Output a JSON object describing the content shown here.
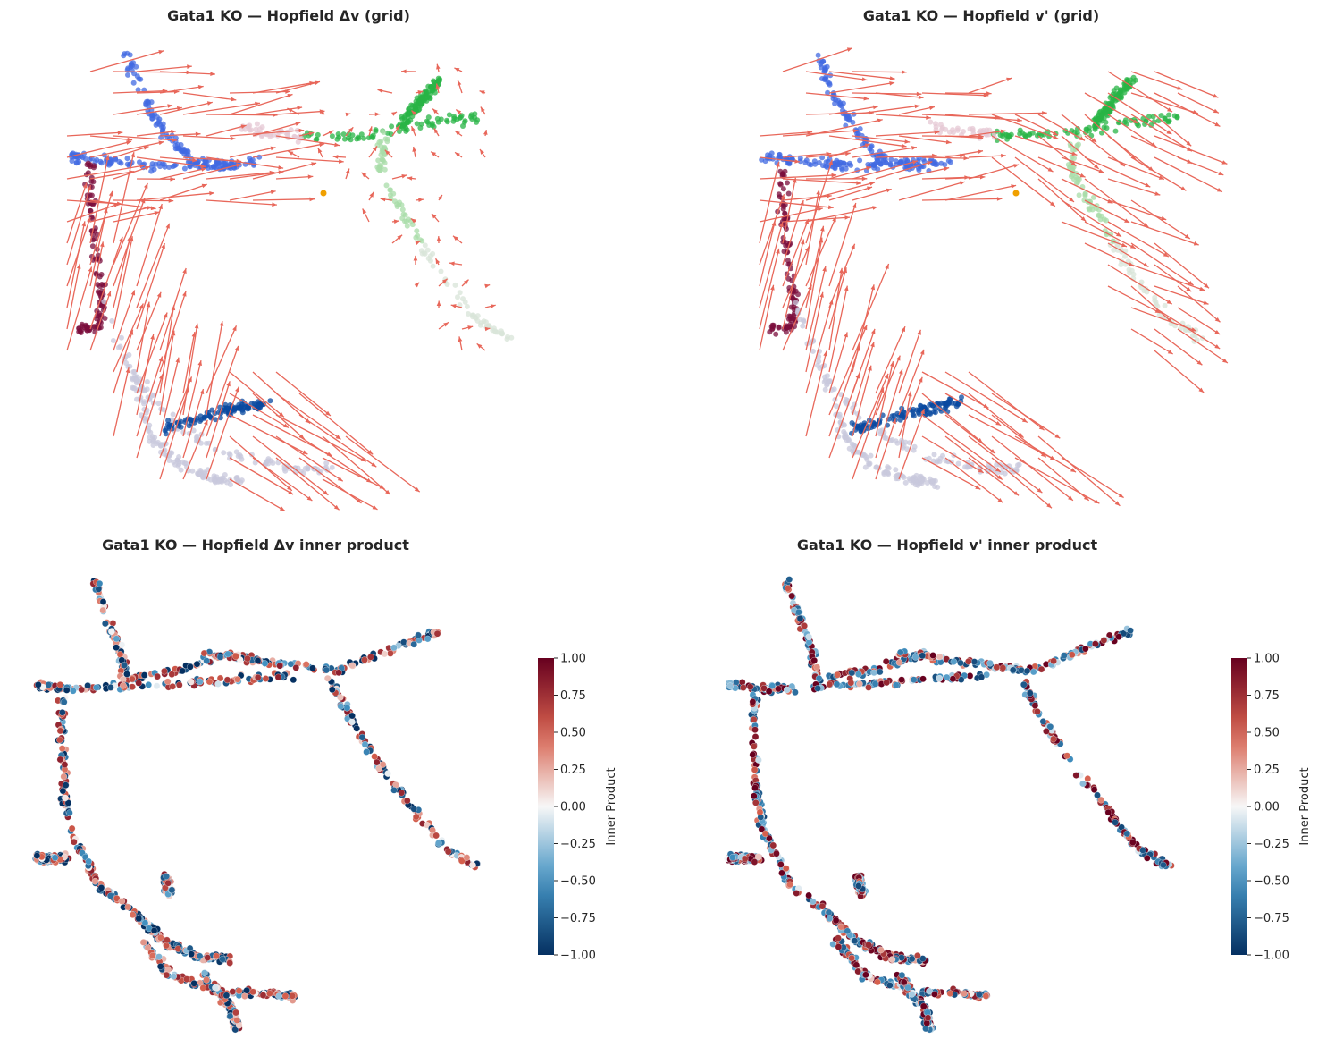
{
  "chart_data": [
    {
      "type": "scatter",
      "subtype": "embedding with grid velocity arrows",
      "title": "Gata1 KO — Hopfield Δv (grid)",
      "arrow_color": "#e8675a",
      "axes_visible": false,
      "point_colors": [
        "#4169e1",
        "#7b0e3c",
        "#c8c8dc",
        "#28b446",
        "#a8dca8",
        "#0a4aa0",
        "#f0a000"
      ],
      "arrow_style": "short arrows in the right branch, long arrows along the left arc"
    },
    {
      "type": "scatter",
      "subtype": "embedding with grid velocity arrows",
      "title": "Gata1 KO — Hopfield v' (grid)",
      "arrow_color": "#e8675a",
      "axes_visible": false,
      "point_colors": [
        "#4169e1",
        "#7b0e3c",
        "#c8c8dc",
        "#28b446",
        "#a8dca8",
        "#0a4aa0",
        "#f0a000"
      ],
      "arrow_style": "long arrows throughout"
    },
    {
      "type": "scatter",
      "subtype": "embedding colored by inner product",
      "title": "Gata1 KO — Hopfield Δv inner product",
      "colormap": "RdBu_r",
      "colorbar": {
        "label": "Inner Product",
        "range": [
          -1.0,
          1.0
        ],
        "ticks": [
          "1.00",
          "0.75",
          "0.50",
          "0.25",
          "0.00",
          "−0.25",
          "−0.50",
          "−0.75",
          "−1.00"
        ]
      },
      "axes_visible": false
    },
    {
      "type": "scatter",
      "subtype": "embedding colored by inner product",
      "title": "Gata1 KO — Hopfield v' inner product",
      "colormap": "RdBu_r",
      "colorbar": {
        "label": "Inner Product",
        "range": [
          -1.0,
          1.0
        ],
        "ticks": [
          "1.00",
          "0.75",
          "0.50",
          "0.25",
          "0.00",
          "−0.25",
          "−0.50",
          "−0.75",
          "−1.00"
        ]
      },
      "axes_visible": false
    }
  ]
}
